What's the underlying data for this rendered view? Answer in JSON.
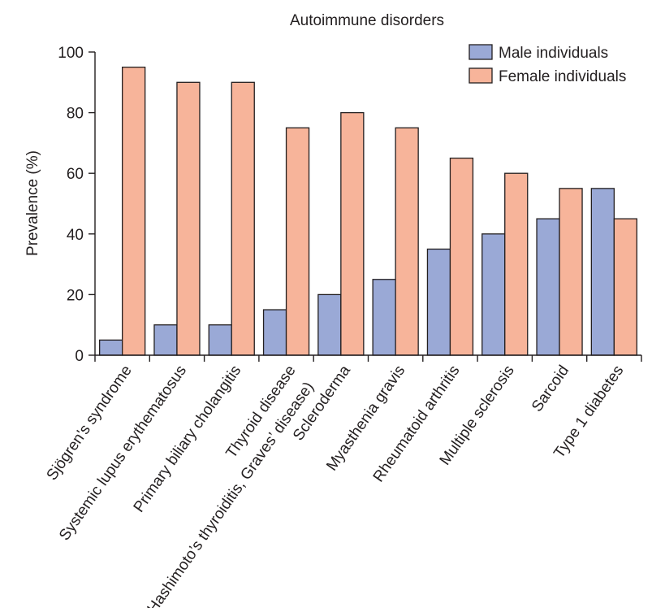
{
  "chart_data": {
    "type": "bar",
    "title": "Autoimmune disorders",
    "xlabel": "",
    "ylabel": "Prevalence (%)",
    "ylim": [
      0,
      100
    ],
    "yticks": [
      0,
      20,
      40,
      60,
      80,
      100
    ],
    "grid": false,
    "legend_position": "top-right",
    "categories": [
      [
        "Sjögren's syndrome"
      ],
      [
        "Systemic lupus erythematosus"
      ],
      [
        "Primary biliary cholangitis"
      ],
      [
        "Thyroid disease",
        "(Hashimoto’s thyroiditis, Graves’ disease)"
      ],
      [
        "Scleroderma"
      ],
      [
        "Myasthenia gravis"
      ],
      [
        "Rheumatoid arthritis"
      ],
      [
        "Multiple sclerosis"
      ],
      [
        "Sarcoid"
      ],
      [
        "Type 1 diabetes"
      ]
    ],
    "series": [
      {
        "name": "Male individuals",
        "color": "#9aa9d6",
        "values": [
          5,
          10,
          10,
          15,
          20,
          25,
          35,
          40,
          45,
          55
        ]
      },
      {
        "name": "Female individuals",
        "color": "#f7b49a",
        "values": [
          95,
          90,
          90,
          75,
          80,
          75,
          65,
          60,
          55,
          45
        ]
      }
    ]
  }
}
